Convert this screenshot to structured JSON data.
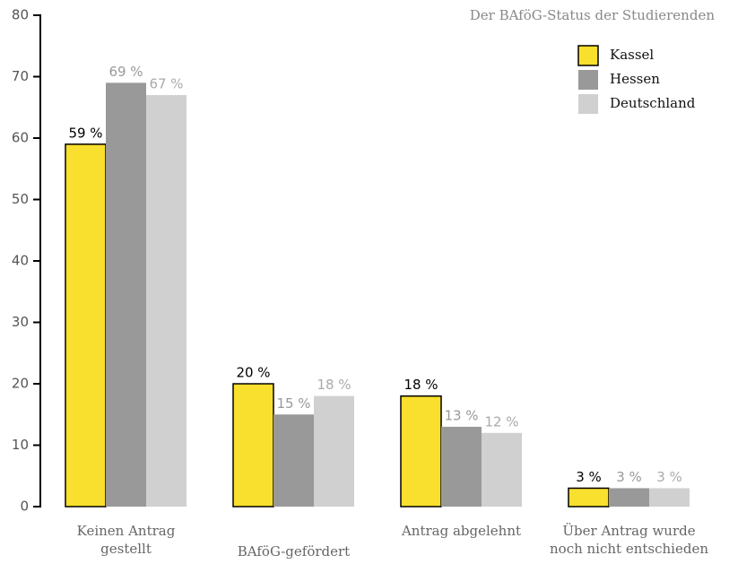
{
  "chart_data": {
    "type": "bar",
    "title": "Der BAföG-Status der Studierenden",
    "categories": [
      "Keinen Antrag\ngestellt",
      "BAföG-gefördert",
      "Antrag abgelehnt",
      "Über Antrag wurde\nnoch nicht entschieden"
    ],
    "series": [
      {
        "name": "Kassel",
        "color": "#f9df2e",
        "values": [
          59,
          20,
          18,
          3
        ],
        "value_labels": [
          "59 %",
          "20 %",
          "18 %",
          "3 %"
        ]
      },
      {
        "name": "Hessen",
        "color": "#999999",
        "values": [
          69,
          15,
          13,
          3
        ],
        "value_labels": [
          "69 %",
          "15 %",
          "13 %",
          "3 %"
        ]
      },
      {
        "name": "Deutschland",
        "color": "#d0d0d0",
        "values": [
          67,
          18,
          12,
          3
        ],
        "value_labels": [
          "67 %",
          "18 %",
          "12 %",
          "3 %"
        ]
      }
    ],
    "ylim": [
      0,
      80
    ],
    "yticks": [
      0,
      10,
      20,
      30,
      40,
      50,
      60,
      70,
      80
    ],
    "legend": "top-right"
  }
}
